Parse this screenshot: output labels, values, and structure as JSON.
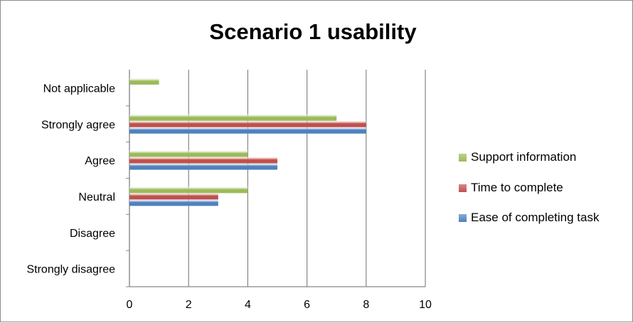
{
  "chart_data": {
    "type": "bar",
    "orientation": "horizontal",
    "title": "Scenario 1 usability",
    "categories": [
      "Strongly disagree",
      "Disagree",
      "Neutral",
      "Agree",
      "Strongly agree",
      "Not applicable"
    ],
    "series": [
      {
        "name": "Ease of completing task",
        "color": "#4f81bd",
        "values": [
          0,
          0,
          3,
          5,
          8,
          0
        ]
      },
      {
        "name": "Time to complete",
        "color": "#c0504d",
        "values": [
          0,
          0,
          3,
          5,
          8,
          0
        ]
      },
      {
        "name": "Support information",
        "color": "#9bbb59",
        "values": [
          0,
          0,
          4,
          4,
          7,
          1
        ]
      }
    ],
    "xlim": [
      0,
      10
    ],
    "xticks": [
      "0",
      "2",
      "4",
      "6",
      "8",
      "10"
    ],
    "grid": "vertical",
    "legend": "right"
  }
}
